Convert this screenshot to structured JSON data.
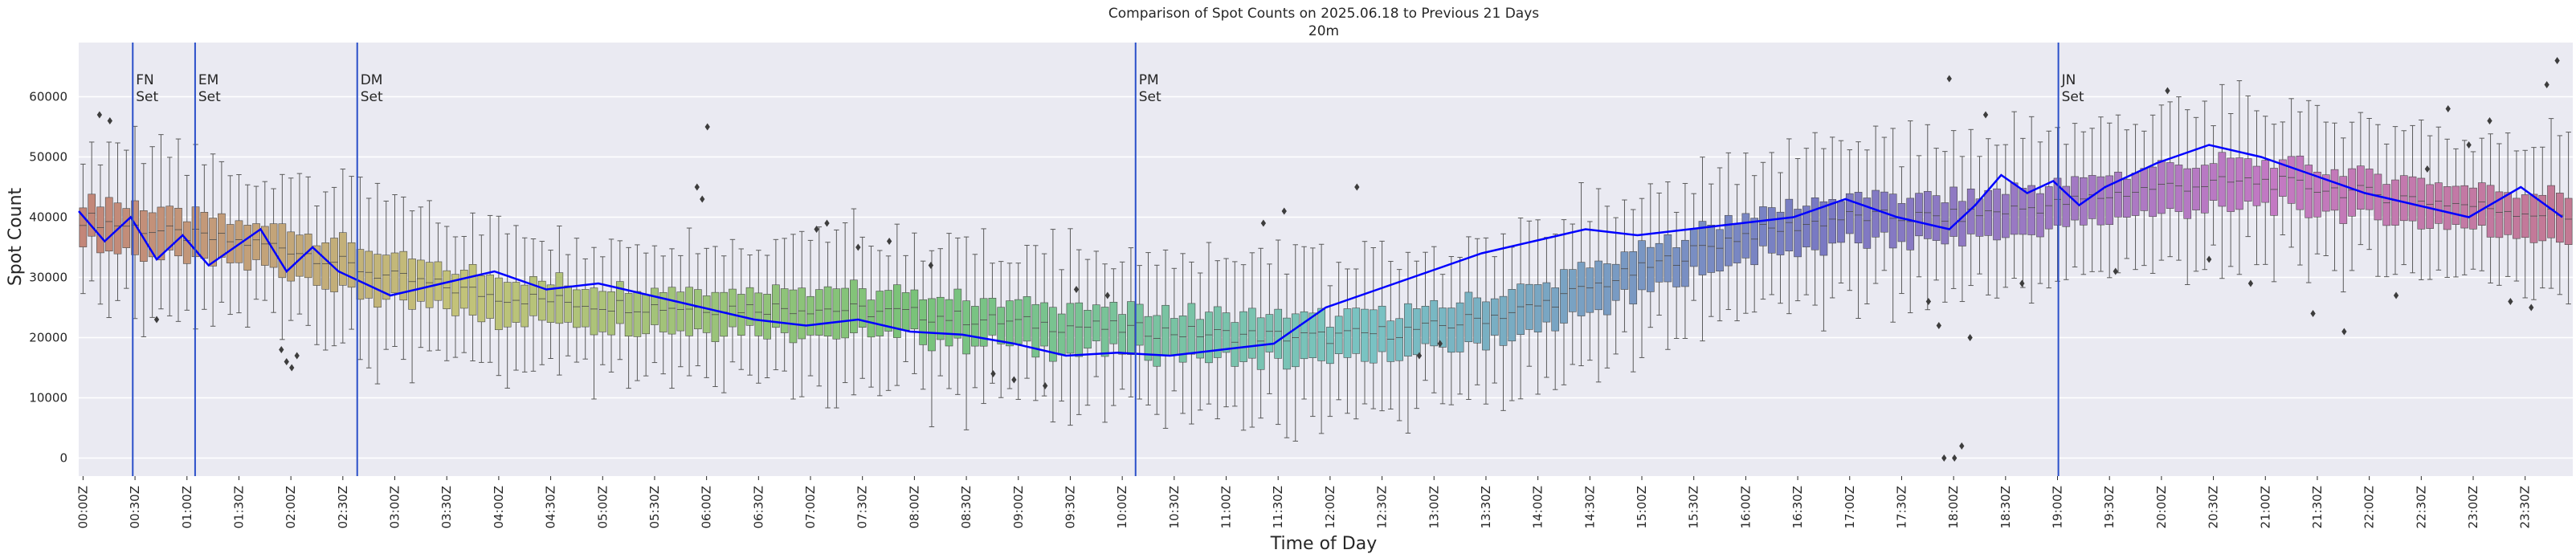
{
  "chart_data": {
    "type": "box",
    "title": "Comparison of Spot Counts on 2025.06.18 to Previous 21 Days",
    "subtitle": "20m",
    "xlabel": "Time of Day",
    "ylabel": "Spot Count",
    "ylim": [
      -3000,
      69000
    ],
    "yticks": [
      0,
      10000,
      20000,
      30000,
      40000,
      50000,
      60000
    ],
    "bin_minutes": 5,
    "bins": 288,
    "xtick_labels": [
      "00:00Z",
      "00:30Z",
      "01:00Z",
      "01:30Z",
      "02:00Z",
      "02:30Z",
      "03:00Z",
      "03:30Z",
      "04:00Z",
      "04:30Z",
      "05:00Z",
      "05:30Z",
      "06:00Z",
      "06:30Z",
      "07:00Z",
      "07:30Z",
      "08:00Z",
      "08:30Z",
      "09:00Z",
      "09:30Z",
      "10:00Z",
      "10:30Z",
      "11:00Z",
      "11:30Z",
      "12:00Z",
      "12:30Z",
      "13:00Z",
      "13:30Z",
      "14:00Z",
      "14:30Z",
      "15:00Z",
      "15:30Z",
      "16:00Z",
      "16:30Z",
      "17:00Z",
      "17:30Z",
      "18:00Z",
      "18:30Z",
      "19:00Z",
      "19:30Z",
      "20:00Z",
      "20:30Z",
      "21:00Z",
      "21:30Z",
      "22:00Z",
      "22:30Z",
      "23:00Z",
      "23:30Z"
    ],
    "median_profile_hours": [
      0,
      1,
      2,
      3,
      4,
      5,
      6,
      7,
      8,
      9,
      10,
      11,
      12,
      13,
      14,
      15,
      16,
      17,
      18,
      19,
      20,
      21,
      22,
      23,
      24
    ],
    "median_profile_values": [
      40000,
      37000,
      35000,
      30000,
      27000,
      25500,
      25000,
      25000,
      24000,
      22500,
      21500,
      20500,
      20000,
      21500,
      25000,
      31000,
      37000,
      40000,
      40000,
      42000,
      45000,
      46000,
      44000,
      42000,
      40000
    ],
    "today_line": {
      "name": "2025.06.18",
      "color": "#0000ff",
      "hours": [
        0,
        0.25,
        0.5,
        0.75,
        1,
        1.25,
        1.5,
        1.75,
        2,
        2.25,
        2.5,
        2.75,
        3,
        3.5,
        4,
        4.5,
        5,
        5.5,
        6,
        6.5,
        7,
        7.5,
        8,
        8.5,
        9,
        9.5,
        10,
        10.5,
        11,
        11.5,
        12,
        12.5,
        13,
        13.5,
        14,
        14.5,
        15,
        15.5,
        16,
        16.5,
        17,
        17.5,
        18,
        18.25,
        18.5,
        18.75,
        19,
        19.25,
        19.5,
        20,
        20.5,
        21,
        21.5,
        22,
        22.5,
        23,
        23.5,
        23.9
      ],
      "values": [
        41000,
        36000,
        40000,
        33000,
        37000,
        32000,
        35000,
        38000,
        31000,
        35000,
        31000,
        29000,
        27000,
        29000,
        31000,
        28000,
        29000,
        27000,
        25000,
        23000,
        22000,
        23000,
        21000,
        20500,
        19000,
        17000,
        17500,
        17000,
        18000,
        19000,
        25000,
        28000,
        31000,
        34000,
        36000,
        38000,
        37000,
        38000,
        39000,
        40000,
        43000,
        40000,
        38000,
        42000,
        47000,
        44000,
        46000,
        42000,
        45000,
        49000,
        52000,
        50000,
        47000,
        44000,
        42000,
        40000,
        45000,
        40000
      ]
    },
    "vertical_markers": [
      {
        "label_line1": "FN",
        "label_line2": "Set",
        "hour": 0.52
      },
      {
        "label_line1": "EM",
        "label_line2": "Set",
        "hour": 1.12
      },
      {
        "label_line1": "DM",
        "label_line2": "Set",
        "hour": 2.68
      },
      {
        "label_line1": "PM",
        "label_line2": "Set",
        "hour": 10.17
      },
      {
        "label_line1": "JN",
        "label_line2": "Set",
        "hour": 19.05
      }
    ],
    "outliers": [
      {
        "hour": 0.2,
        "value": 57000
      },
      {
        "hour": 0.3,
        "value": 56000
      },
      {
        "hour": 0.75,
        "value": 23000
      },
      {
        "hour": 1.95,
        "value": 18000
      },
      {
        "hour": 2.0,
        "value": 16000
      },
      {
        "hour": 2.05,
        "value": 15000
      },
      {
        "hour": 2.1,
        "value": 17000
      },
      {
        "hour": 5.95,
        "value": 45000
      },
      {
        "hour": 6.0,
        "value": 43000
      },
      {
        "hour": 6.05,
        "value": 55000
      },
      {
        "hour": 7.1,
        "value": 38000
      },
      {
        "hour": 7.2,
        "value": 39000
      },
      {
        "hour": 7.5,
        "value": 35000
      },
      {
        "hour": 7.8,
        "value": 36000
      },
      {
        "hour": 8.2,
        "value": 32000
      },
      {
        "hour": 8.8,
        "value": 14000
      },
      {
        "hour": 9.0,
        "value": 13000
      },
      {
        "hour": 9.3,
        "value": 12000
      },
      {
        "hour": 9.6,
        "value": 28000
      },
      {
        "hour": 9.9,
        "value": 27000
      },
      {
        "hour": 11.4,
        "value": 39000
      },
      {
        "hour": 11.6,
        "value": 41000
      },
      {
        "hour": 12.3,
        "value": 45000
      },
      {
        "hour": 12.9,
        "value": 17000
      },
      {
        "hour": 13.1,
        "value": 19000
      },
      {
        "hour": 17.95,
        "value": 0
      },
      {
        "hour": 18.05,
        "value": 0
      },
      {
        "hour": 18.12,
        "value": 2000
      },
      {
        "hour": 17.8,
        "value": 26000
      },
      {
        "hour": 17.9,
        "value": 22000
      },
      {
        "hour": 18.0,
        "value": 63000
      },
      {
        "hour": 18.2,
        "value": 20000
      },
      {
        "hour": 18.35,
        "value": 57000
      },
      {
        "hour": 18.7,
        "value": 29000
      },
      {
        "hour": 19.6,
        "value": 31000
      },
      {
        "hour": 20.1,
        "value": 61000
      },
      {
        "hour": 20.5,
        "value": 33000
      },
      {
        "hour": 20.9,
        "value": 29000
      },
      {
        "hour": 21.5,
        "value": 24000
      },
      {
        "hour": 21.8,
        "value": 21000
      },
      {
        "hour": 22.3,
        "value": 27000
      },
      {
        "hour": 22.6,
        "value": 48000
      },
      {
        "hour": 22.8,
        "value": 58000
      },
      {
        "hour": 23.0,
        "value": 52000
      },
      {
        "hour": 23.2,
        "value": 56000
      },
      {
        "hour": 23.4,
        "value": 26000
      },
      {
        "hour": 23.6,
        "value": 25000
      },
      {
        "hour": 23.75,
        "value": 62000
      },
      {
        "hour": 23.85,
        "value": 66000
      }
    ]
  }
}
